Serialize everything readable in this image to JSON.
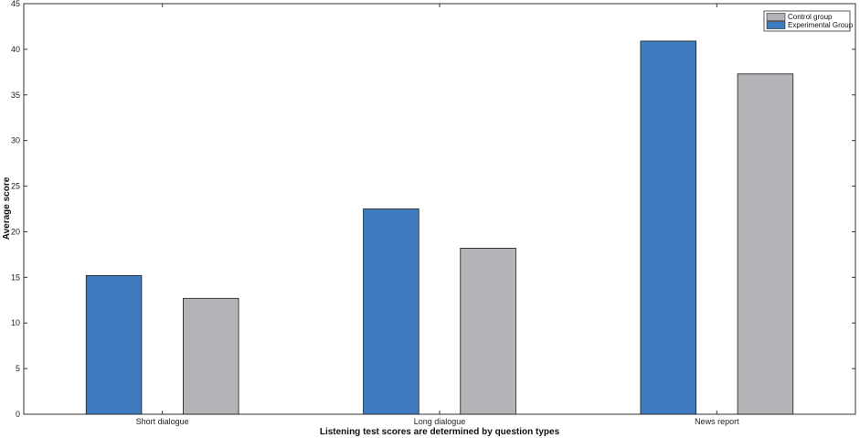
{
  "chart_data": {
    "type": "bar",
    "categories": [
      "Short dialogue",
      "Long dialogue",
      "News report"
    ],
    "series": [
      {
        "name": "Experimental Group",
        "values": [
          15.2,
          22.5,
          40.9
        ],
        "color": "#3f7cbf"
      },
      {
        "name": "Control group",
        "values": [
          12.7,
          18.2,
          37.3
        ],
        "color": "#b3b4b8"
      }
    ],
    "xlabel": "Listening test scores are determined by question types",
    "ylabel": "Average score",
    "ylim": [
      0,
      45
    ],
    "yticks": [
      0,
      5,
      10,
      15,
      20,
      25,
      30,
      35,
      40,
      45
    ],
    "grid": false,
    "legend": {
      "position": "top-right",
      "entries": [
        "Control group",
        "Experimental Group"
      ]
    }
  }
}
